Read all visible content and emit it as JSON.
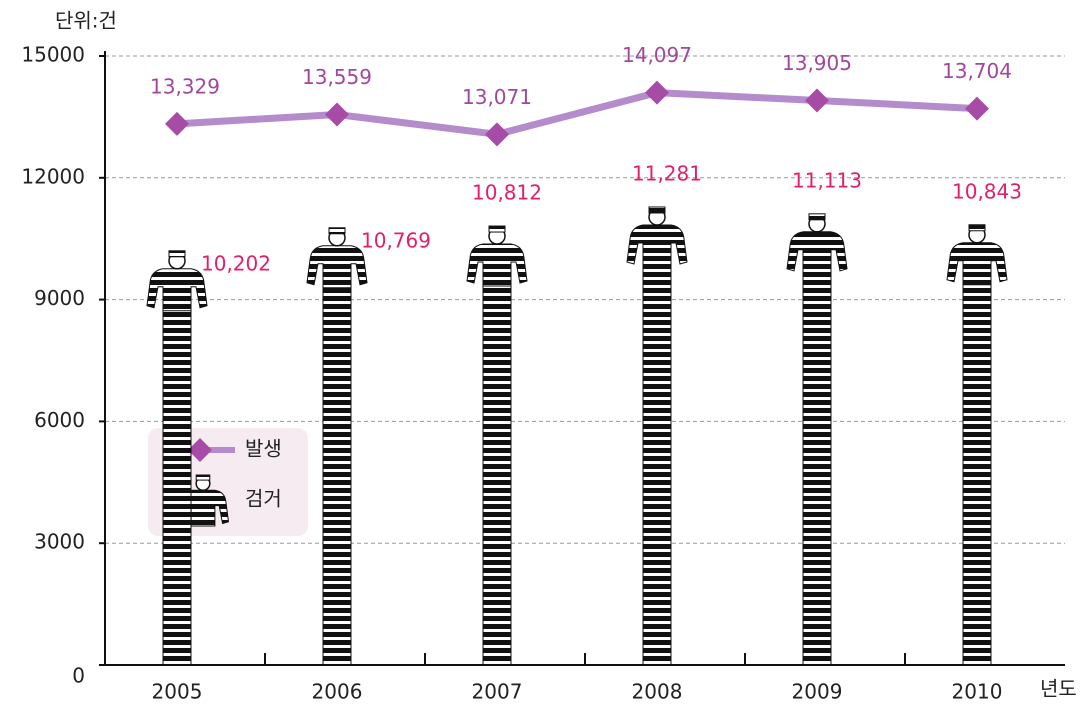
{
  "chart_data": {
    "type": "bar",
    "y_label": "단위:건",
    "x_label": "년도",
    "categories": [
      "2005",
      "2006",
      "2007",
      "2008",
      "2009",
      "2010"
    ],
    "series": [
      {
        "name": "발생",
        "type": "line",
        "color": "#b48ccb",
        "marker_color": "#a64ca6",
        "label_color": "#a0479e",
        "values": [
          13329,
          13559,
          13071,
          14097,
          13905,
          13704
        ],
        "value_labels": [
          "13,329",
          "13,559",
          "13,071",
          "14,097",
          "13,905",
          "13,704"
        ]
      },
      {
        "name": "검거",
        "type": "bar",
        "color": "#111111",
        "label_color": "#e0206e",
        "values": [
          10202,
          10769,
          10812,
          11281,
          11113,
          10843
        ],
        "value_labels": [
          "10,202",
          "10,769",
          "10,812",
          "11,281",
          "11,113",
          "10,843"
        ]
      }
    ],
    "ylim": [
      0,
      15000
    ],
    "yticks": [
      0,
      3000,
      6000,
      9000,
      12000,
      15000
    ],
    "grid": true
  }
}
